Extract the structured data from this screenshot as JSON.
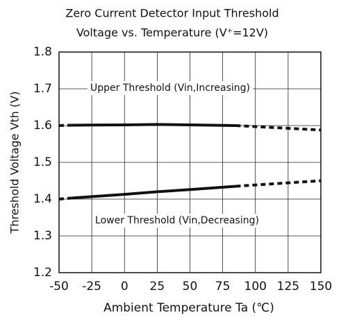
{
  "chart_data": {
    "type": "line",
    "title": [
      "Zero Current Detector Input Threshold",
      "Voltage vs. Temperature (V⁺=12V)"
    ],
    "xlabel": "Ambient Temperature Ta (℃)",
    "ylabel": "Threshold Voltage Vth (V)",
    "xlim": [
      -50,
      150
    ],
    "xticks": [
      -50,
      -25,
      0,
      25,
      50,
      75,
      100,
      125,
      150
    ],
    "ylim": [
      1.2,
      1.8
    ],
    "yticks": [
      1.2,
      1.3,
      1.4,
      1.5,
      1.6,
      1.7,
      1.8
    ],
    "grid": true,
    "annotations": [
      "Upper Threshold (Vin,Increasing)",
      "Lower Threshold (Vin,Decreasing)"
    ],
    "series": [
      {
        "color": "#111111",
        "dash": true,
        "x": [
          -50,
          -40
        ],
        "values": [
          1.6,
          1.601
        ]
      },
      {
        "color": "#111111",
        "dash": false,
        "x": [
          -40,
          0,
          25,
          50,
          85
        ],
        "values": [
          1.601,
          1.602,
          1.603,
          1.602,
          1.6
        ]
      },
      {
        "color": "#111111",
        "dash": true,
        "x": [
          85,
          150
        ],
        "values": [
          1.6,
          1.588
        ]
      },
      {
        "color": "#111111",
        "dash": true,
        "x": [
          -50,
          -40
        ],
        "values": [
          1.4,
          1.403
        ]
      },
      {
        "color": "#111111",
        "dash": false,
        "x": [
          -40,
          0,
          25,
          50,
          85
        ],
        "values": [
          1.403,
          1.413,
          1.42,
          1.426,
          1.435
        ]
      },
      {
        "color": "#111111",
        "dash": true,
        "x": [
          85,
          150
        ],
        "values": [
          1.435,
          1.45
        ]
      }
    ]
  }
}
